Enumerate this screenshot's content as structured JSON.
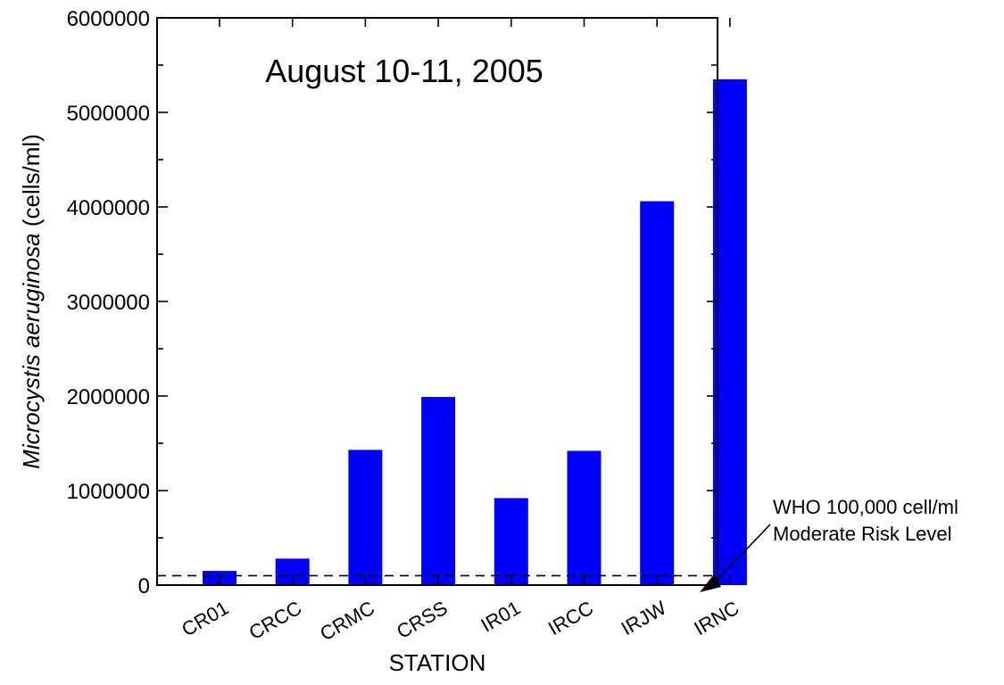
{
  "chart_data": {
    "type": "bar",
    "title": "August 10-11, 2005",
    "xlabel": "STATION",
    "ylabel_italic": "Microcystis aeruginosa",
    "ylabel_unit": " (cells/ml)",
    "categories": [
      "CR01",
      "CRCC",
      "CRMC",
      "CRSS",
      "IR01",
      "IRCC",
      "IRJW",
      "IRNC"
    ],
    "values": [
      150000,
      280000,
      1430000,
      1990000,
      920000,
      1420000,
      4060000,
      5350000
    ],
    "ylim": [
      0,
      6000000
    ],
    "yticks": [
      "0",
      "1000000",
      "2000000",
      "3000000",
      "4000000",
      "5000000",
      "6000000"
    ],
    "bar_color": "#0000ff",
    "grid": false,
    "reference_line": {
      "value": 100000,
      "style": "dashed",
      "label_line1": "WHO 100,000 cell/ml",
      "label_line2": "Moderate Risk Level"
    }
  }
}
